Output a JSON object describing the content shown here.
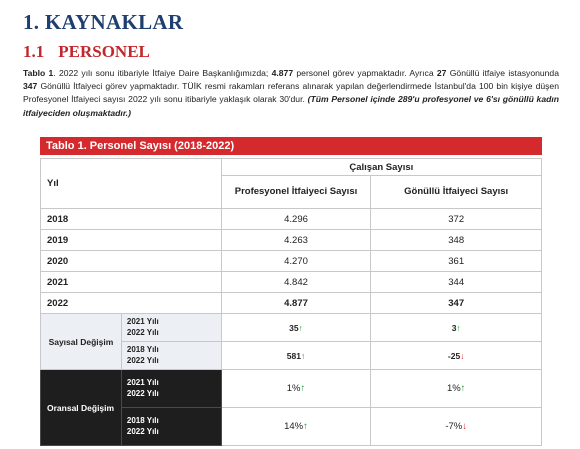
{
  "heading1": "1. KAYNAKLAR",
  "heading2_num": "1.1",
  "heading2_text": "PERSONEL",
  "paragraph": {
    "p1": "Tablo 1",
    "p2": ". 2022 yılı sonu itibariyle İtfaiye Daire Başkanlığımızda; ",
    "p3": "4.877",
    "p4": " personel görev yapmaktadır. Ayrıca ",
    "p5": "27",
    "p6": " Gönüllü itfaiye istasyonunda ",
    "p7": "347",
    "p8": " Gönüllü İtfaiyeci görev yapmaktadır. TÜİK resmi rakamları referans alınarak yapılan değerlendirmede İstanbul'da 100 bin kişiye düşen Profesyonel İtfaiyeci sayısı 2022 yılı sonu itibariyle yaklaşık olarak 30'dur. ",
    "p9": "(Tüm Personel içinde 289'u profesyonel ve 6'sı gönüllü kadın itfaiyeciden oluşmaktadır.)"
  },
  "table": {
    "title": "Tablo 1. Personel Sayısı (2018-2022)",
    "col_yil": "Yıl",
    "col_group": "Çalışan Sayısı",
    "col_prof": "Profesyonel İtfaiyeci Sayısı",
    "col_gon": "Gönüllü İtfaiyeci Sayısı",
    "rows": [
      {
        "year": "2018",
        "prof": "4.296",
        "gon": "372"
      },
      {
        "year": "2019",
        "prof": "4.263",
        "gon": "348"
      },
      {
        "year": "2020",
        "prof": "4.270",
        "gon": "361"
      },
      {
        "year": "2021",
        "prof": "4.842",
        "gon": "344"
      },
      {
        "year": "2022",
        "prof": "4.877",
        "gon": "347"
      }
    ],
    "sayisal_label": "Sayısal Değişim",
    "oransal_label": "Oransal Değişim",
    "sayisal": [
      {
        "from": "2021 Yılı",
        "to": "2022 Yılı",
        "prof": "35",
        "prof_dir": "↑",
        "gon": "3",
        "gon_dir": "↑"
      },
      {
        "from": "2018 Yılı",
        "to": "2022 Yılı",
        "prof": "581",
        "prof_dir": "↑",
        "gon": "-25",
        "gon_dir": "↓"
      }
    ],
    "oransal": [
      {
        "from": "2021 Yılı",
        "to": "2022 Yılı",
        "prof": "1%",
        "prof_dir": "↑",
        "gon": "1%",
        "gon_dir": "↑"
      },
      {
        "from": "2018 Yılı",
        "to": "2022 Yılı",
        "prof": "14%",
        "prof_dir": "↑",
        "gon": "-7%",
        "gon_dir": "↓"
      }
    ]
  },
  "colors": {
    "heading_blue": "#1f3f6e",
    "accent_red": "#d42a2e",
    "up_green": "#1f9a3b",
    "dark_band": "#1e1e1e"
  }
}
